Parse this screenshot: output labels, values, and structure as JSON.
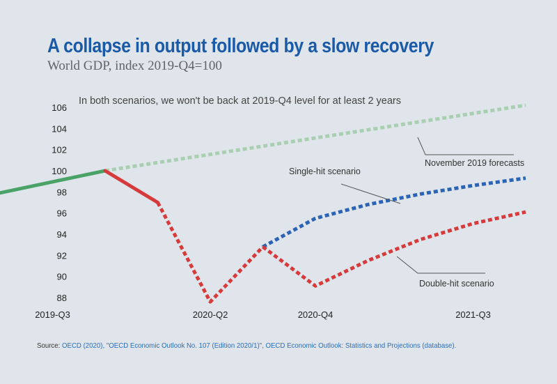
{
  "header": {
    "title": "A collapse in output followed by a slow recovery",
    "subtitle": "World GDP, index 2019-Q4=100"
  },
  "chart_data": {
    "type": "line",
    "title": "A collapse in output followed by a slow recovery",
    "subtitle": "World GDP, index 2019-Q4=100",
    "note": "In both scenarios, we won't be back at 2019-Q4 level for at least 2 years",
    "xlabel": "",
    "ylabel": "",
    "x": [
      "2019-Q2",
      "2019-Q3",
      "2019-Q4",
      "2020-Q1",
      "2020-Q2",
      "2020-Q3",
      "2020-Q4",
      "2021-Q1",
      "2021-Q2",
      "2021-Q3",
      "2021-Q4"
    ],
    "x_tick_labels": [
      "2019-Q3",
      "2020-Q2",
      "2020-Q4",
      "2021-Q3"
    ],
    "ylim": [
      88,
      106
    ],
    "y_ticks": [
      88,
      90,
      92,
      94,
      96,
      98,
      100,
      102,
      104,
      106
    ],
    "grid": false,
    "legend": "none",
    "series": [
      {
        "key": "history",
        "color": "#4aa267",
        "style": "solid",
        "points": [
          [
            "2019-Q2",
            97.9
          ],
          [
            "2019-Q4",
            100.0
          ]
        ]
      },
      {
        "key": "forecast",
        "name": "November 2019 forecasts",
        "color": "#a9cfb1",
        "style": "dotted",
        "points": [
          [
            "2019-Q4",
            100.0
          ],
          [
            "2021-Q4",
            106.2
          ]
        ]
      },
      {
        "key": "shock",
        "color": "#d63a3a",
        "style": "solid",
        "points": [
          [
            "2019-Q4",
            100.0
          ],
          [
            "2020-Q1",
            97.0
          ]
        ]
      },
      {
        "key": "common_drop",
        "color": "#d63a3a",
        "style": "dotted",
        "points": [
          [
            "2020-Q1",
            97.0
          ],
          [
            "2020-Q2",
            87.6
          ],
          [
            "2020-Q3",
            92.8
          ]
        ]
      },
      {
        "key": "single_hit",
        "name": "Single-hit scenario",
        "color": "#2b63b5",
        "style": "dotted",
        "points": [
          [
            "2020-Q3",
            92.8
          ],
          [
            "2020-Q4",
            95.5
          ],
          [
            "2021-Q1",
            96.8
          ],
          [
            "2021-Q2",
            97.8
          ],
          [
            "2021-Q3",
            98.6
          ],
          [
            "2021-Q4",
            99.3
          ]
        ]
      },
      {
        "key": "double_hit",
        "name": "Double-hit scenario",
        "color": "#d63a3a",
        "style": "dotted",
        "points": [
          [
            "2020-Q3",
            92.8
          ],
          [
            "2020-Q4",
            89.1
          ],
          [
            "2021-Q1",
            91.5
          ],
          [
            "2021-Q2",
            93.5
          ],
          [
            "2021-Q3",
            95.0
          ],
          [
            "2021-Q4",
            96.1
          ]
        ]
      }
    ],
    "annotations": [
      {
        "text": "November 2019 forecasts",
        "series": "forecast"
      },
      {
        "text": "Single-hit scenario",
        "series": "single_hit"
      },
      {
        "text": "Double-hit scenario",
        "series": "double_hit"
      }
    ]
  },
  "footer": {
    "source_label": "Source: ",
    "source_text": "OECD (2020), \"OECD Economic Outlook No. 107 (Edition 2020/1)\", OECD Economic Outlook: Statistics and Projections (database)."
  }
}
